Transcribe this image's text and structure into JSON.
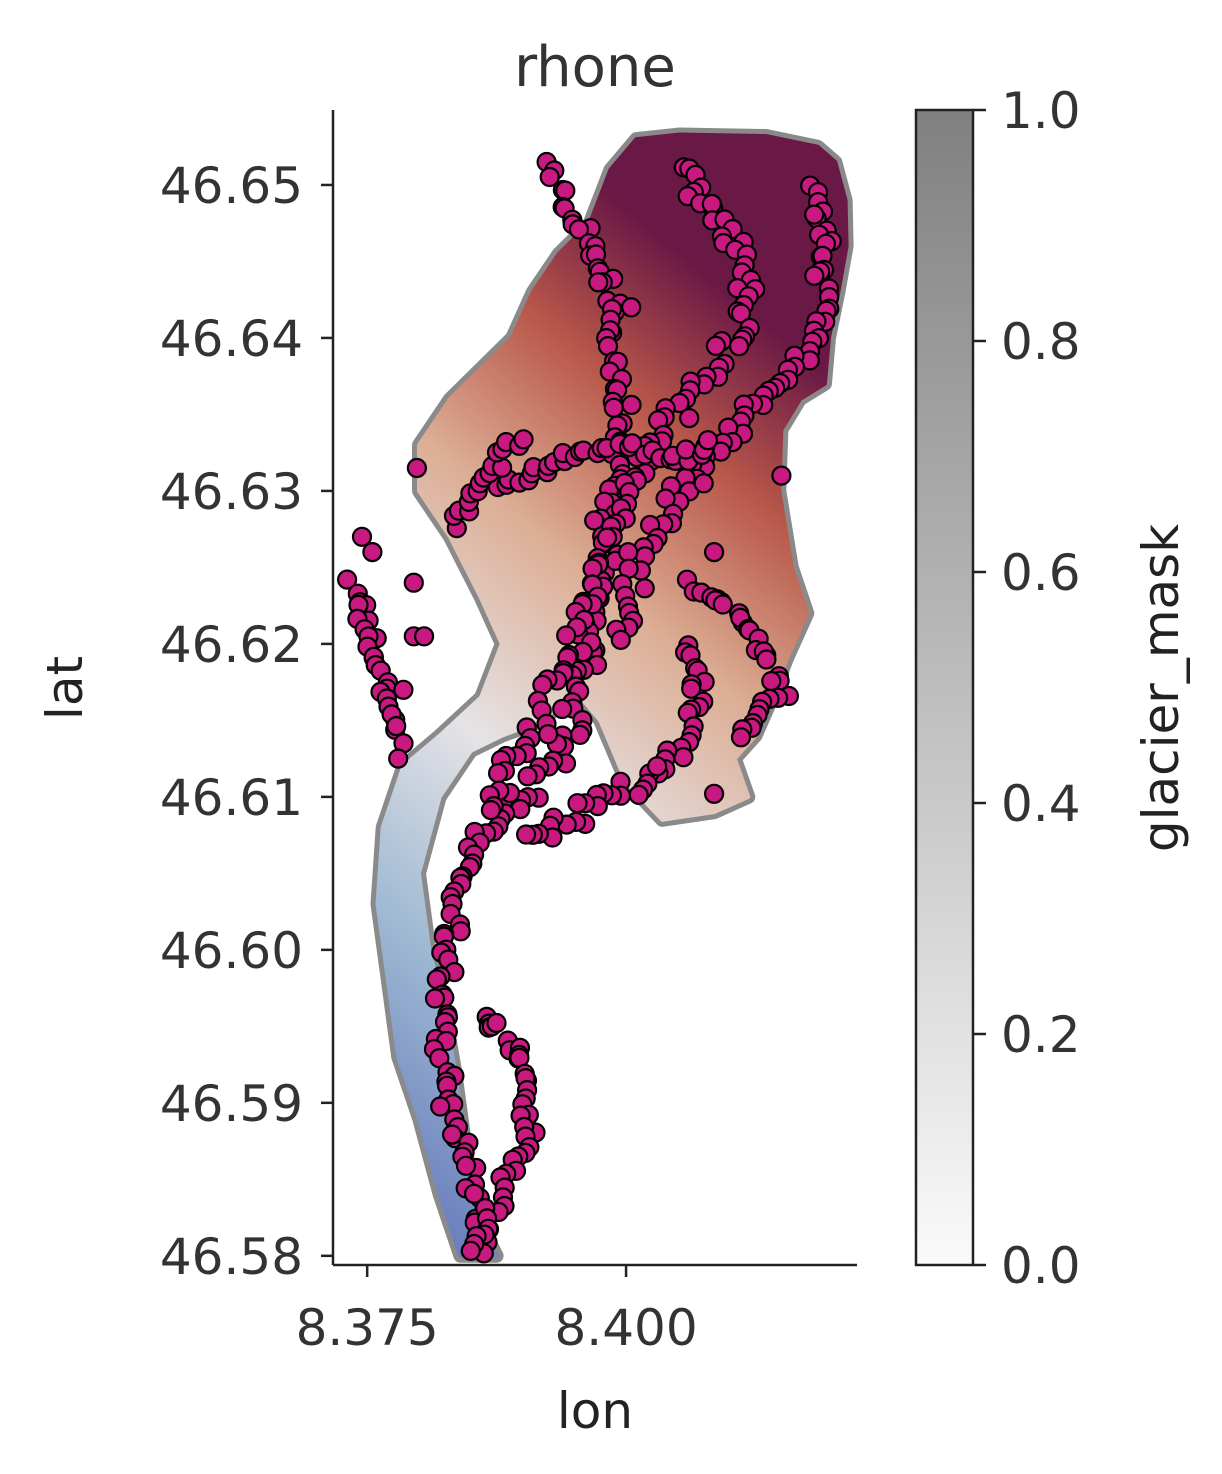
{
  "chart_data": {
    "type": "scatter",
    "title": "rhone",
    "xlabel": "lon",
    "ylabel": "lat",
    "xlim": [
      8.3717,
      8.4223
    ],
    "ylim": [
      46.5794,
      46.6549
    ],
    "xticks": [
      {
        "value": 8.375,
        "label": "8.375"
      },
      {
        "value": 8.4,
        "label": "8.400"
      }
    ],
    "yticks": [
      {
        "value": 46.58,
        "label": "46.58"
      },
      {
        "value": 46.59,
        "label": "46.59"
      },
      {
        "value": 46.6,
        "label": "46.60"
      },
      {
        "value": 46.61,
        "label": "46.61"
      },
      {
        "value": 46.62,
        "label": "46.62"
      },
      {
        "value": 46.63,
        "label": "46.63"
      },
      {
        "value": 46.64,
        "label": "46.64"
      },
      {
        "value": 46.65,
        "label": "46.65"
      }
    ],
    "grid": false,
    "colorbar": {
      "label": "glacier_mask",
      "range": [
        0.0,
        1.0
      ],
      "ticks": [
        {
          "value": 0.0,
          "label": "0.0"
        },
        {
          "value": 0.2,
          "label": "0.2"
        },
        {
          "value": 0.4,
          "label": "0.4"
        },
        {
          "value": 0.6,
          "label": "0.6"
        },
        {
          "value": 0.8,
          "label": "0.8"
        },
        {
          "value": 1.0,
          "label": "1.0"
        }
      ],
      "colors": [
        "#fafafa",
        "#808080"
      ]
    },
    "glacier_outline": [
      [
        8.4052,
        46.6533
      ],
      [
        8.4135,
        46.6532
      ],
      [
        8.4185,
        46.6525
      ],
      [
        8.4202,
        46.6515
      ],
      [
        8.4212,
        46.649
      ],
      [
        8.4213,
        46.646
      ],
      [
        8.4205,
        46.643
      ],
      [
        8.4196,
        46.64
      ],
      [
        8.4192,
        46.637
      ],
      [
        8.4168,
        46.636
      ],
      [
        8.415,
        46.634
      ],
      [
        8.4148,
        46.63
      ],
      [
        8.416,
        46.625
      ],
      [
        8.4175,
        46.622
      ],
      [
        8.4155,
        46.619
      ],
      [
        8.4138,
        46.616
      ],
      [
        8.4125,
        46.614
      ],
      [
        8.4105,
        46.6125
      ],
      [
        8.4118,
        46.61
      ],
      [
        8.4085,
        46.609
      ],
      [
        8.4035,
        46.6085
      ],
      [
        8.4,
        46.611
      ],
      [
        8.3975,
        46.615
      ],
      [
        8.395,
        46.617
      ],
      [
        8.392,
        46.615
      ],
      [
        8.388,
        46.614
      ],
      [
        8.385,
        46.613
      ],
      [
        8.382,
        46.61
      ],
      [
        8.38,
        46.605
      ],
      [
        8.381,
        46.6
      ],
      [
        8.3825,
        46.596
      ],
      [
        8.3835,
        46.592
      ],
      [
        8.3845,
        46.587
      ],
      [
        8.386,
        46.582
      ],
      [
        8.3875,
        46.58
      ],
      [
        8.384,
        46.58
      ],
      [
        8.382,
        46.584
      ],
      [
        8.38,
        46.589
      ],
      [
        8.378,
        46.593
      ],
      [
        8.377,
        46.598
      ],
      [
        8.376,
        46.603
      ],
      [
        8.3765,
        46.608
      ],
      [
        8.3785,
        46.612
      ],
      [
        8.382,
        46.614
      ],
      [
        8.386,
        46.6165
      ],
      [
        8.388,
        46.62
      ],
      [
        8.386,
        46.623
      ],
      [
        8.383,
        46.627
      ],
      [
        8.38,
        46.63
      ],
      [
        8.38,
        46.633
      ],
      [
        8.383,
        46.636
      ],
      [
        8.386,
        46.638
      ],
      [
        8.389,
        46.64
      ],
      [
        8.391,
        46.643
      ],
      [
        8.3935,
        46.6455
      ],
      [
        8.3965,
        46.6475
      ],
      [
        8.3985,
        46.651
      ],
      [
        8.401,
        46.653
      ]
    ],
    "point_tracks": [
      {
        "width": 0.0008,
        "points": [
          [
            8.3925,
            46.651
          ],
          [
            8.396,
            46.647
          ],
          [
            8.3985,
            46.642
          ],
          [
            8.3995,
            46.636
          ],
          [
            8.3985,
            46.63
          ],
          [
            8.397,
            46.624
          ],
          [
            8.396,
            46.618
          ],
          [
            8.394,
            46.613
          ],
          [
            8.3895,
            46.61
          ],
          [
            8.3855,
            46.607
          ],
          [
            8.383,
            46.602
          ],
          [
            8.382,
            46.596
          ],
          [
            8.383,
            46.59
          ],
          [
            8.385,
            46.585
          ],
          [
            8.3865,
            46.58
          ]
        ]
      },
      {
        "width": 0.001,
        "points": [
          [
            8.405,
            46.651
          ],
          [
            8.409,
            46.648
          ],
          [
            8.412,
            46.644
          ],
          [
            8.411,
            46.64
          ],
          [
            8.406,
            46.636
          ],
          [
            8.401,
            46.631
          ],
          [
            8.3975,
            46.625
          ],
          [
            8.394,
            46.618
          ],
          [
            8.39,
            46.613
          ],
          [
            8.386,
            46.609
          ]
        ]
      },
      {
        "width": 0.0007,
        "points": [
          [
            8.418,
            46.65
          ],
          [
            8.4195,
            46.645
          ],
          [
            8.4185,
            46.64
          ],
          [
            8.415,
            46.637
          ],
          [
            8.41,
            46.634
          ],
          [
            8.405,
            46.63
          ],
          [
            8.401,
            46.625
          ],
          [
            8.399,
            46.62
          ]
        ]
      },
      {
        "width": 0.0005,
        "points": [
          [
            8.406,
            46.624
          ],
          [
            8.409,
            46.623
          ],
          [
            8.412,
            46.621
          ],
          [
            8.4135,
            46.619
          ],
          [
            8.415,
            46.617
          ],
          [
            8.413,
            46.615
          ],
          [
            8.41,
            46.614
          ]
        ]
      },
      {
        "width": 0.0006,
        "points": [
          [
            8.406,
            46.62
          ],
          [
            8.407,
            46.616
          ],
          [
            8.405,
            46.613
          ],
          [
            8.401,
            46.611
          ],
          [
            8.396,
            46.609
          ],
          [
            8.39,
            46.607
          ]
        ]
      },
      {
        "width": 0.0005,
        "points": [
          [
            8.388,
            46.63
          ],
          [
            8.393,
            46.632
          ],
          [
            8.399,
            46.633
          ],
          [
            8.405,
            46.632
          ],
          [
            8.409,
            46.633
          ]
        ]
      },
      {
        "width": 0.0006,
        "points": [
          [
            8.386,
            46.596
          ],
          [
            8.39,
            46.593
          ],
          [
            8.391,
            46.588
          ],
          [
            8.388,
            46.584
          ],
          [
            8.386,
            46.581
          ],
          [
            8.3845,
            46.58
          ]
        ]
      },
      {
        "width": 0.0004,
        "points": [
          [
            8.3735,
            46.624
          ],
          [
            8.375,
            46.621
          ],
          [
            8.3762,
            46.618
          ],
          [
            8.3775,
            46.615
          ],
          [
            8.3785,
            46.6135
          ]
        ]
      },
      {
        "width": 0.0004,
        "points": [
          [
            8.383,
            46.628
          ],
          [
            8.387,
            46.631
          ],
          [
            8.39,
            46.634
          ]
        ]
      }
    ],
    "scattered_points": [
      [
        8.3798,
        46.6315
      ],
      [
        8.3745,
        46.627
      ],
      [
        8.3755,
        46.626
      ],
      [
        8.3795,
        46.624
      ],
      [
        8.3795,
        46.6205
      ],
      [
        8.3805,
        46.6205
      ],
      [
        8.3785,
        46.617
      ],
      [
        8.378,
        46.6125
      ],
      [
        8.4085,
        46.626
      ],
      [
        8.415,
        46.631
      ],
      [
        8.4085,
        46.6102
      ],
      [
        8.4075,
        46.6305
      ],
      [
        8.4005,
        46.642
      ],
      [
        8.403,
        46.612
      ]
    ]
  }
}
